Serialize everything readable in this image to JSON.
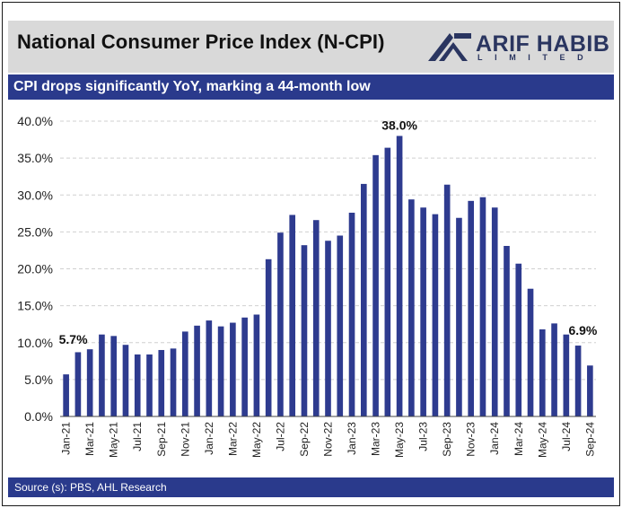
{
  "header": {
    "title": "National Consumer Price Index (N-CPI)",
    "logo_name": "ARIF HABIB",
    "logo_sub": "LIMITED"
  },
  "subtitle": "CPI drops significantly YoY, marking a 44-month low",
  "source": "Source (s): PBS, AHL Research",
  "colors": {
    "bar": "#2e3b8f",
    "banner": "#2a3a8c",
    "header_bg": "#d9d9d9",
    "grid": "#d0d0d0"
  },
  "chart_data": {
    "type": "bar",
    "title": "National Consumer Price Index (N-CPI)",
    "xlabel": "",
    "ylabel": "",
    "ylim": [
      0,
      40
    ],
    "yticks": [
      "0.0%",
      "5.0%",
      "10.0%",
      "15.0%",
      "20.0%",
      "25.0%",
      "30.0%",
      "35.0%",
      "40.0%"
    ],
    "grid": true,
    "legend": "none",
    "categories": [
      "Jan-21",
      "Feb-21",
      "Mar-21",
      "Apr-21",
      "May-21",
      "Jun-21",
      "Jul-21",
      "Aug-21",
      "Sep-21",
      "Oct-21",
      "Nov-21",
      "Dec-21",
      "Jan-22",
      "Feb-22",
      "Mar-22",
      "Apr-22",
      "May-22",
      "Jun-22",
      "Jul-22",
      "Aug-22",
      "Sep-22",
      "Oct-22",
      "Nov-22",
      "Dec-22",
      "Jan-23",
      "Feb-23",
      "Mar-23",
      "Apr-23",
      "May-23",
      "Jun-23",
      "Jul-23",
      "Aug-23",
      "Sep-23",
      "Oct-23",
      "Nov-23",
      "Dec-23",
      "Jan-24",
      "Feb-24",
      "Mar-24",
      "Apr-24",
      "May-24",
      "Jun-24",
      "Jul-24",
      "Aug-24",
      "Sep-24"
    ],
    "tick_labels": [
      "Jan-21",
      "Mar-21",
      "May-21",
      "Jul-21",
      "Sep-21",
      "Nov-21",
      "Jan-22",
      "Mar-22",
      "May-22",
      "Jul-22",
      "Sep-22",
      "Nov-22",
      "Jan-23",
      "Mar-23",
      "May-23",
      "Jul-23",
      "Sep-23",
      "Nov-23",
      "Jan-24",
      "Mar-24",
      "May-24",
      "Jul-24",
      "Sep-24"
    ],
    "values": [
      5.7,
      8.7,
      9.1,
      11.1,
      10.9,
      9.7,
      8.4,
      8.4,
      9.0,
      9.2,
      11.5,
      12.3,
      13.0,
      12.2,
      12.7,
      13.4,
      13.8,
      21.3,
      24.9,
      27.3,
      23.2,
      26.6,
      23.8,
      24.5,
      27.6,
      31.5,
      35.4,
      36.4,
      38.0,
      29.4,
      28.3,
      27.4,
      31.4,
      26.9,
      29.2,
      29.7,
      28.3,
      23.1,
      20.7,
      17.3,
      11.8,
      12.6,
      11.1,
      9.6,
      6.9
    ],
    "annotations": [
      {
        "category": "Jan-21",
        "text": "5.7%"
      },
      {
        "category": "May-23",
        "text": "38.0%"
      },
      {
        "category": "Sep-24",
        "text": "6.9%"
      }
    ]
  }
}
